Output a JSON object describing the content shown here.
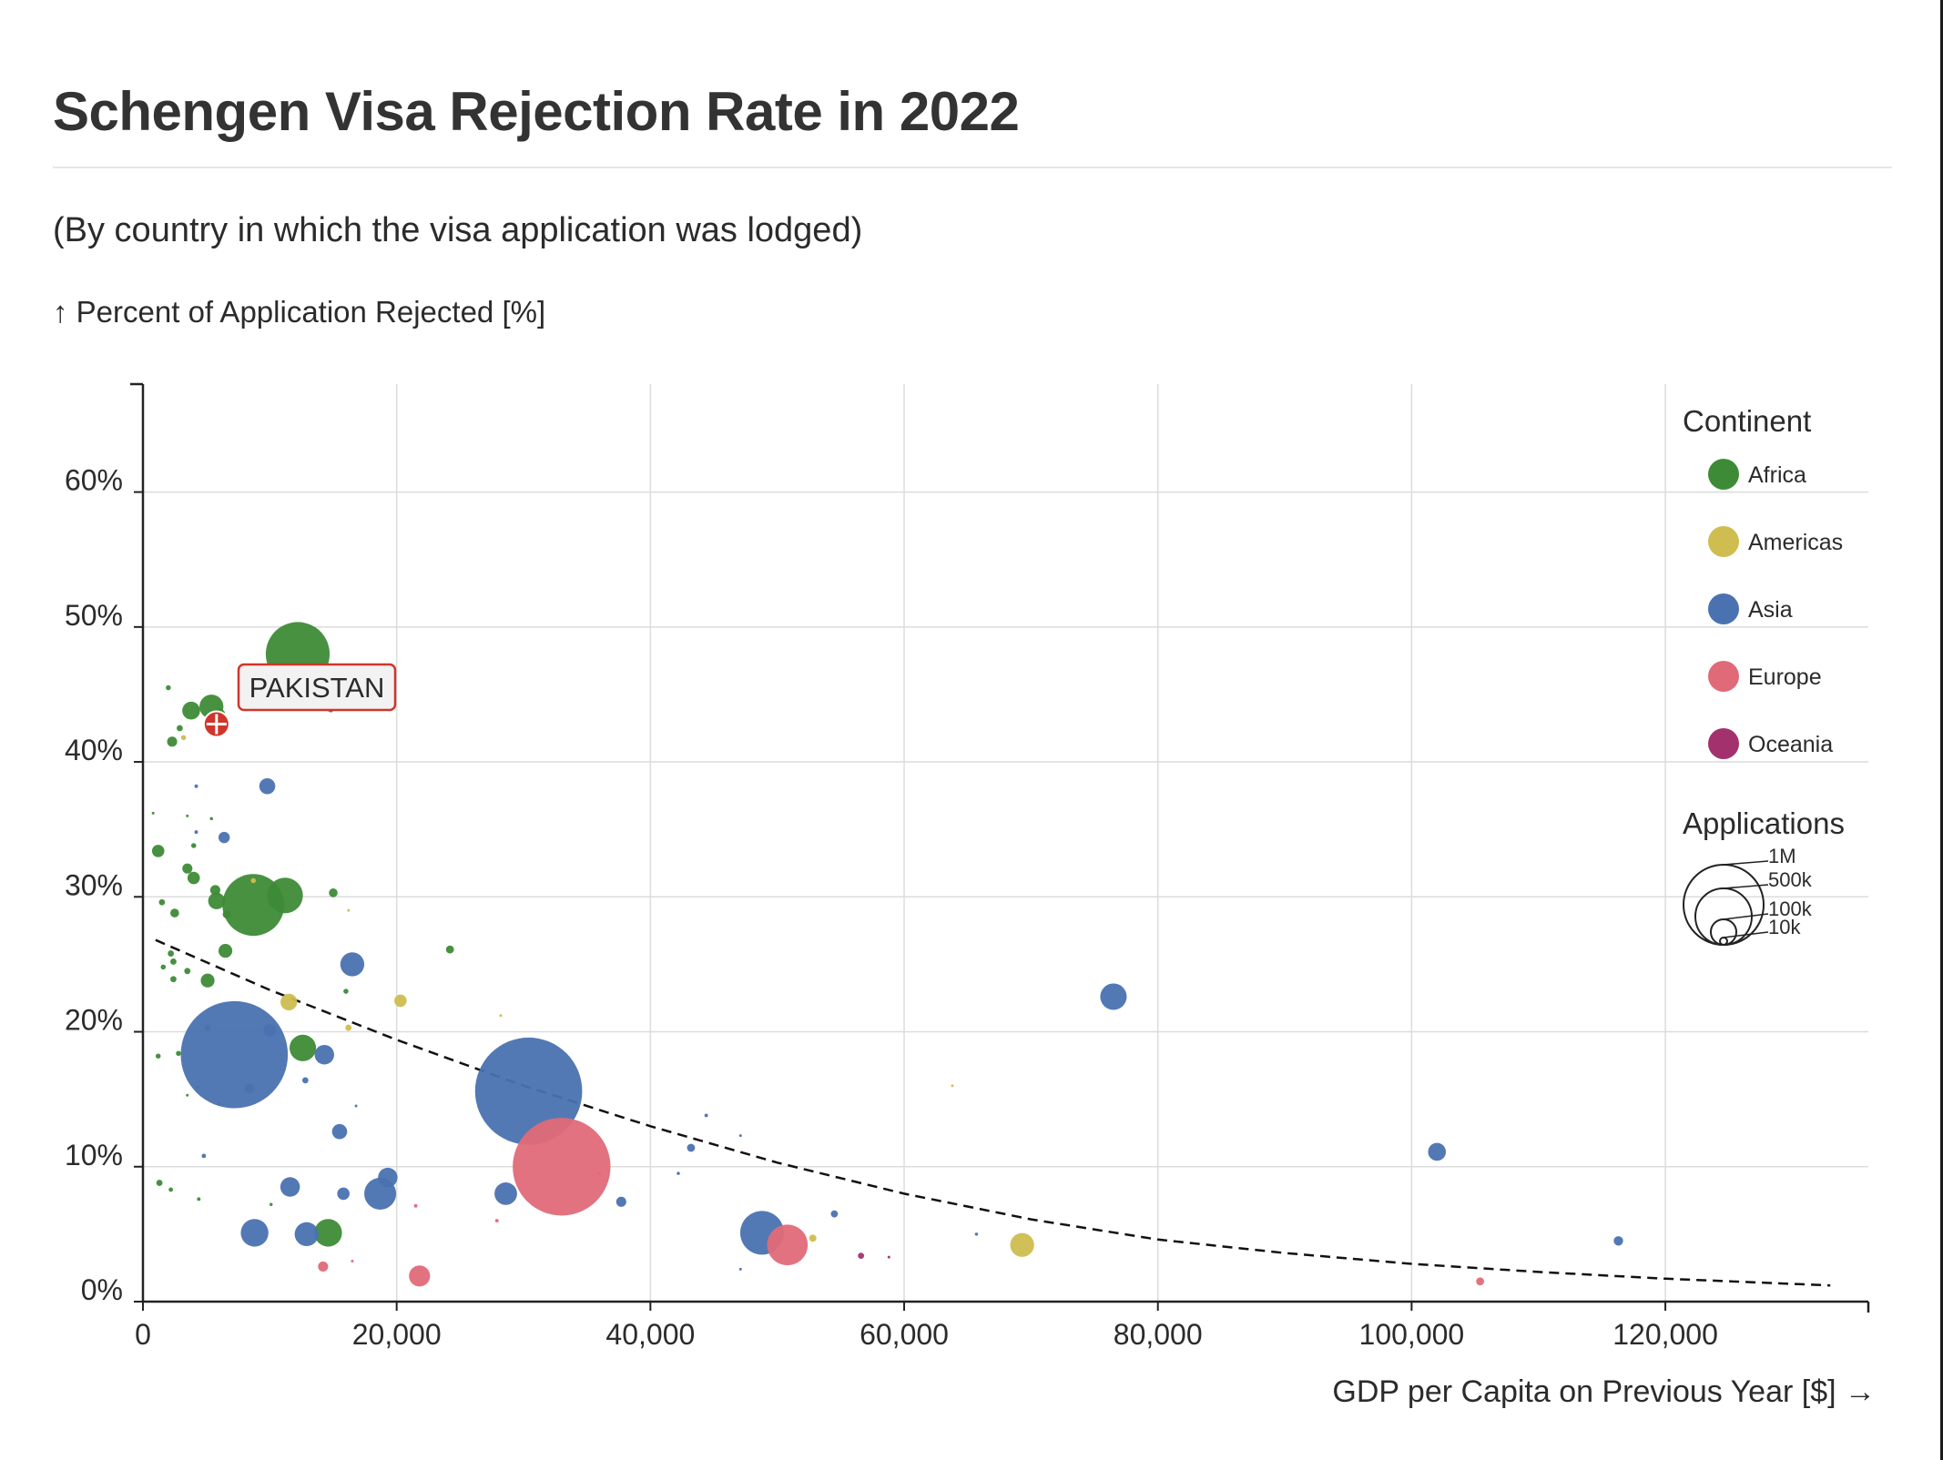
{
  "title": "Schengen Visa Rejection Rate in 2022",
  "subtitle": "(By country in which the visa application was lodged)",
  "y_axis_label": "↑ Percent of Application Rejected [%]",
  "x_axis_label": "GDP per Capita on Previous Year [$] →",
  "tooltip": {
    "label": "PAKISTAN"
  },
  "colors": {
    "Africa": "#3d8b37",
    "Americas": "#cfbd4f",
    "Asia": "#4a72b0",
    "Europe": "#e06a78",
    "Oceania": "#a3316e",
    "trend": "#111111",
    "grid": "#dcdcdc",
    "highlight": "#d0352b"
  },
  "chart_data": {
    "type": "scatter",
    "title": "Schengen Visa Rejection Rate in 2022",
    "subtitle": "(By country in which the visa application was lodged)",
    "xlabel": "GDP per Capita on Previous Year [$]",
    "ylabel": "Percent of Application Rejected [%]",
    "xlim": [
      0,
      136000
    ],
    "ylim": [
      0,
      68
    ],
    "x_ticks": [
      0,
      20000,
      40000,
      60000,
      80000,
      100000,
      120000
    ],
    "x_tick_labels": [
      "0",
      "20,000",
      "40,000",
      "60,000",
      "80,000",
      "100,000",
      "120,000"
    ],
    "y_ticks": [
      0,
      10,
      20,
      30,
      40,
      50,
      60
    ],
    "y_tick_labels": [
      "0%",
      "10%",
      "20%",
      "30%",
      "40%",
      "50%",
      "60%"
    ],
    "grid": true,
    "legend": {
      "placement": "top-right",
      "continent_title": "Continent",
      "continents": [
        "Africa",
        "Americas",
        "Asia",
        "Europe",
        "Oceania"
      ],
      "size_title": "Applications",
      "size_values": [
        1000000,
        500000,
        100000,
        10000
      ],
      "size_labels": [
        "1M",
        "500k",
        "100k",
        "10k"
      ]
    },
    "trendline": {
      "style": "dashed",
      "points": [
        [
          1000,
          26.8
        ],
        [
          10000,
          23.1
        ],
        [
          20000,
          19.4
        ],
        [
          30000,
          16.0
        ],
        [
          40000,
          13.0
        ],
        [
          50000,
          10.3
        ],
        [
          60000,
          8.0
        ],
        [
          70000,
          6.1
        ],
        [
          80000,
          4.6
        ],
        [
          90000,
          3.6
        ],
        [
          100000,
          2.8
        ],
        [
          110000,
          2.2
        ],
        [
          120000,
          1.7
        ],
        [
          133000,
          1.2
        ]
      ]
    },
    "highlighted_point": {
      "label": "PAKISTAN",
      "x": 5800,
      "y": 42.8,
      "applications": 60000,
      "continent": "Asia"
    },
    "points": [
      {
        "x": 12200,
        "y": 48.0,
        "size": 320000,
        "continent": "Africa"
      },
      {
        "x": 2000,
        "y": 45.5,
        "size": 2000,
        "continent": "Africa"
      },
      {
        "x": 3800,
        "y": 43.8,
        "size": 25000,
        "continent": "Africa"
      },
      {
        "x": 5400,
        "y": 44.1,
        "size": 45000,
        "continent": "Africa"
      },
      {
        "x": 6000,
        "y": 43.5,
        "size": 12000,
        "continent": "Africa"
      },
      {
        "x": 2900,
        "y": 42.5,
        "size": 3000,
        "continent": "Africa"
      },
      {
        "x": 2300,
        "y": 41.5,
        "size": 8000,
        "continent": "Africa"
      },
      {
        "x": 3200,
        "y": 41.8,
        "size": 2000,
        "continent": "Americas"
      },
      {
        "x": 14800,
        "y": 43.9,
        "size": 3000,
        "continent": "Asia"
      },
      {
        "x": 4200,
        "y": 38.2,
        "size": 1000,
        "continent": "Asia"
      },
      {
        "x": 9800,
        "y": 38.2,
        "size": 20000,
        "continent": "Asia"
      },
      {
        "x": 800,
        "y": 36.2,
        "size": 500,
        "continent": "Africa"
      },
      {
        "x": 3500,
        "y": 36.0,
        "size": 500,
        "continent": "Africa"
      },
      {
        "x": 5400,
        "y": 35.8,
        "size": 800,
        "continent": "Africa"
      },
      {
        "x": 4200,
        "y": 34.8,
        "size": 1000,
        "continent": "Asia"
      },
      {
        "x": 6400,
        "y": 34.4,
        "size": 10000,
        "continent": "Asia"
      },
      {
        "x": 4000,
        "y": 33.8,
        "size": 2000,
        "continent": "Africa"
      },
      {
        "x": 1200,
        "y": 33.4,
        "size": 12000,
        "continent": "Africa"
      },
      {
        "x": 3500,
        "y": 32.1,
        "size": 8000,
        "continent": "Africa"
      },
      {
        "x": 4000,
        "y": 31.4,
        "size": 12000,
        "continent": "Africa"
      },
      {
        "x": 8700,
        "y": 31.2,
        "size": 2000,
        "continent": "Americas"
      },
      {
        "x": 5700,
        "y": 30.5,
        "size": 8000,
        "continent": "Africa"
      },
      {
        "x": 15000,
        "y": 30.3,
        "size": 6000,
        "continent": "Africa"
      },
      {
        "x": 11200,
        "y": 30.1,
        "size": 100000,
        "continent": "Africa"
      },
      {
        "x": 5800,
        "y": 29.7,
        "size": 22000,
        "continent": "Africa"
      },
      {
        "x": 8700,
        "y": 29.4,
        "size": 300000,
        "continent": "Africa"
      },
      {
        "x": 1500,
        "y": 29.6,
        "size": 3000,
        "continent": "Africa"
      },
      {
        "x": 2500,
        "y": 28.8,
        "size": 6000,
        "continent": "Africa"
      },
      {
        "x": 6600,
        "y": 28.7,
        "size": 5000,
        "continent": "Africa"
      },
      {
        "x": 16200,
        "y": 29.0,
        "size": 500,
        "continent": "Americas"
      },
      {
        "x": 24200,
        "y": 26.1,
        "size": 5000,
        "continent": "Africa"
      },
      {
        "x": 6500,
        "y": 26.0,
        "size": 15000,
        "continent": "Africa"
      },
      {
        "x": 2200,
        "y": 25.8,
        "size": 3000,
        "continent": "Africa"
      },
      {
        "x": 2400,
        "y": 25.2,
        "size": 3000,
        "continent": "Africa"
      },
      {
        "x": 1600,
        "y": 24.8,
        "size": 2000,
        "continent": "Africa"
      },
      {
        "x": 3500,
        "y": 24.5,
        "size": 3000,
        "continent": "Africa"
      },
      {
        "x": 16500,
        "y": 25.0,
        "size": 45000,
        "continent": "Asia"
      },
      {
        "x": 2400,
        "y": 23.9,
        "size": 3000,
        "continent": "Africa"
      },
      {
        "x": 5100,
        "y": 23.8,
        "size": 15000,
        "continent": "Africa"
      },
      {
        "x": 16000,
        "y": 23.0,
        "size": 2000,
        "continent": "Africa"
      },
      {
        "x": 11500,
        "y": 22.2,
        "size": 22000,
        "continent": "Americas"
      },
      {
        "x": 20300,
        "y": 22.3,
        "size": 12000,
        "continent": "Americas"
      },
      {
        "x": 76500,
        "y": 22.6,
        "size": 55000,
        "continent": "Asia"
      },
      {
        "x": 16200,
        "y": 20.3,
        "size": 3000,
        "continent": "Americas"
      },
      {
        "x": 28200,
        "y": 21.2,
        "size": 500,
        "continent": "Americas"
      },
      {
        "x": 5100,
        "y": 20.3,
        "size": 3000,
        "continent": "Asia"
      },
      {
        "x": 10000,
        "y": 20.1,
        "size": 12000,
        "continent": "Asia"
      },
      {
        "x": 7200,
        "y": 18.3,
        "size": 900000,
        "continent": "Asia"
      },
      {
        "x": 12600,
        "y": 18.8,
        "size": 55000,
        "continent": "Africa"
      },
      {
        "x": 14300,
        "y": 18.3,
        "size": 30000,
        "continent": "Asia"
      },
      {
        "x": 1200,
        "y": 18.2,
        "size": 2000,
        "continent": "Africa"
      },
      {
        "x": 2800,
        "y": 18.4,
        "size": 2000,
        "continent": "Africa"
      },
      {
        "x": 12800,
        "y": 16.4,
        "size": 3000,
        "continent": "Asia"
      },
      {
        "x": 8400,
        "y": 15.8,
        "size": 7000,
        "continent": "Asia"
      },
      {
        "x": 4300,
        "y": 15.9,
        "size": 1000,
        "continent": "Asia"
      },
      {
        "x": 3500,
        "y": 15.3,
        "size": 500,
        "continent": "Africa"
      },
      {
        "x": 63800,
        "y": 16.0,
        "size": 500,
        "continent": "Americas"
      },
      {
        "x": 30400,
        "y": 15.6,
        "size": 900000,
        "continent": "Asia"
      },
      {
        "x": 6000,
        "y": 14.7,
        "size": 800,
        "continent": "Asia"
      },
      {
        "x": 16800,
        "y": 14.5,
        "size": 500,
        "continent": "Asia"
      },
      {
        "x": 44400,
        "y": 13.8,
        "size": 1000,
        "continent": "Asia"
      },
      {
        "x": 47100,
        "y": 12.3,
        "size": 500,
        "continent": "Asia"
      },
      {
        "x": 15500,
        "y": 12.6,
        "size": 18000,
        "continent": "Asia"
      },
      {
        "x": 43200,
        "y": 11.4,
        "size": 5000,
        "continent": "Asia"
      },
      {
        "x": 102000,
        "y": 11.1,
        "size": 25000,
        "continent": "Asia"
      },
      {
        "x": 4800,
        "y": 10.8,
        "size": 1500,
        "continent": "Asia"
      },
      {
        "x": 33000,
        "y": 10.0,
        "size": 750000,
        "continent": "Europe"
      },
      {
        "x": 36000,
        "y": 9.5,
        "size": 1000,
        "continent": "Europe"
      },
      {
        "x": 42200,
        "y": 9.5,
        "size": 800,
        "continent": "Asia"
      },
      {
        "x": 19300,
        "y": 9.2,
        "size": 30000,
        "continent": "Asia"
      },
      {
        "x": 1300,
        "y": 8.8,
        "size": 3000,
        "continent": "Africa"
      },
      {
        "x": 2200,
        "y": 8.3,
        "size": 1500,
        "continent": "Africa"
      },
      {
        "x": 11600,
        "y": 8.5,
        "size": 30000,
        "continent": "Asia"
      },
      {
        "x": 18700,
        "y": 8.0,
        "size": 80000,
        "continent": "Asia"
      },
      {
        "x": 15800,
        "y": 8.0,
        "size": 12000,
        "continent": "Asia"
      },
      {
        "x": 28600,
        "y": 8.0,
        "size": 40000,
        "continent": "Asia"
      },
      {
        "x": 4400,
        "y": 7.6,
        "size": 1000,
        "continent": "Africa"
      },
      {
        "x": 10100,
        "y": 7.2,
        "size": 800,
        "continent": "Africa"
      },
      {
        "x": 21500,
        "y": 7.1,
        "size": 1000,
        "continent": "Europe"
      },
      {
        "x": 37700,
        "y": 7.4,
        "size": 8000,
        "continent": "Asia"
      },
      {
        "x": 54500,
        "y": 6.5,
        "size": 4000,
        "continent": "Asia"
      },
      {
        "x": 27900,
        "y": 6.0,
        "size": 1000,
        "continent": "Europe"
      },
      {
        "x": 8800,
        "y": 5.1,
        "size": 60000,
        "continent": "Asia"
      },
      {
        "x": 12900,
        "y": 5.0,
        "size": 45000,
        "continent": "Asia"
      },
      {
        "x": 14600,
        "y": 5.1,
        "size": 60000,
        "continent": "Africa"
      },
      {
        "x": 48800,
        "y": 5.1,
        "size": 150000,
        "continent": "Asia"
      },
      {
        "x": 52800,
        "y": 4.7,
        "size": 4000,
        "continent": "Americas"
      },
      {
        "x": 50800,
        "y": 4.2,
        "size": 130000,
        "continent": "Europe"
      },
      {
        "x": 65700,
        "y": 5.0,
        "size": 800,
        "continent": "Asia"
      },
      {
        "x": 69300,
        "y": 4.2,
        "size": 45000,
        "continent": "Americas"
      },
      {
        "x": 116300,
        "y": 4.5,
        "size": 7000,
        "continent": "Asia"
      },
      {
        "x": 58800,
        "y": 3.3,
        "size": 300,
        "continent": "Oceania"
      },
      {
        "x": 56600,
        "y": 3.4,
        "size": 3000,
        "continent": "Oceania"
      },
      {
        "x": 16500,
        "y": 3.0,
        "size": 500,
        "continent": "Europe"
      },
      {
        "x": 14200,
        "y": 2.6,
        "size": 8000,
        "continent": "Europe"
      },
      {
        "x": 47100,
        "y": 2.4,
        "size": 500,
        "continent": "Asia"
      },
      {
        "x": 21800,
        "y": 1.9,
        "size": 35000,
        "continent": "Europe"
      },
      {
        "x": 105400,
        "y": 1.5,
        "size": 5000,
        "continent": "Europe"
      }
    ]
  }
}
